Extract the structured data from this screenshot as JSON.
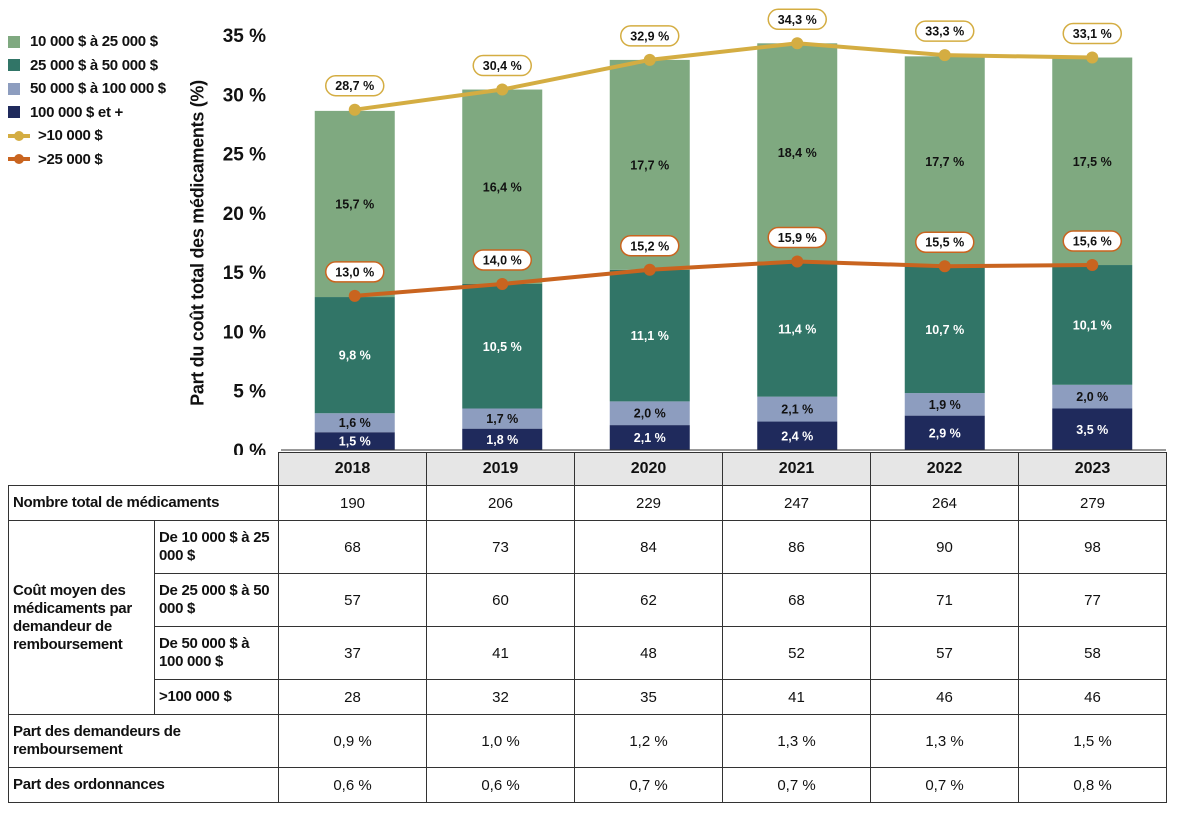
{
  "chart_data": {
    "type": "bar",
    "stacked": true,
    "categories": [
      "2018",
      "2019",
      "2020",
      "2021",
      "2022",
      "2023"
    ],
    "ylabel": "Part du coût total des médicaments (%)",
    "ylim": [
      0,
      35
    ],
    "yticks": [
      "0 %",
      "5 %",
      "10 %",
      "15 %",
      "20 %",
      "25 %",
      "30 %",
      "35 %"
    ],
    "series": [
      {
        "name": "100 000 $ et +",
        "color": "#1f2a5c",
        "label_color": "#ffffff",
        "values": [
          1.5,
          1.8,
          2.1,
          2.4,
          2.9,
          3.5
        ],
        "labels": [
          "1,5 %",
          "1,8 %",
          "2,1 %",
          "2,4 %",
          "2,9 %",
          "3,5 %"
        ]
      },
      {
        "name": "50 000 $ à 100 000 $",
        "color": "#8d9dbf",
        "label_color": "#111111",
        "values": [
          1.6,
          1.7,
          2.0,
          2.1,
          1.9,
          2.0
        ],
        "labels": [
          "1,6 %",
          "1,7 %",
          "2,0 %",
          "2,1 %",
          "1,9 %",
          "2,0 %"
        ]
      },
      {
        "name": "25 000 $ à 50 000 $",
        "color": "#317567",
        "label_color": "#ffffff",
        "values": [
          9.8,
          10.5,
          11.1,
          11.4,
          10.7,
          10.1
        ],
        "labels": [
          "9,8 %",
          "10,5 %",
          "11,1 %",
          "11,4 %",
          "10,7 %",
          "10,1 %"
        ]
      },
      {
        "name": "10 000 $ à 25 000 $",
        "color": "#7fa980",
        "label_color": "#111111",
        "values": [
          15.7,
          16.4,
          17.7,
          18.4,
          17.7,
          17.5
        ],
        "labels": [
          "15,7 %",
          "16,4 %",
          "17,7 %",
          "18,4 %",
          "17,7 %",
          "17,5 %"
        ]
      }
    ],
    "lines": [
      {
        "name": ">10 000 $",
        "color": "#d4ad42",
        "values": [
          28.7,
          30.4,
          32.9,
          34.3,
          33.3,
          33.1
        ],
        "labels": [
          "28,7 %",
          "30,4 %",
          "32,9 %",
          "34,3 %",
          "33,3 %",
          "33,1 %"
        ]
      },
      {
        "name": ">25 000 $",
        "color": "#c9641f",
        "values": [
          13.0,
          14.0,
          15.2,
          15.9,
          15.5,
          15.6
        ],
        "labels": [
          "13,0 %",
          "14,0 %",
          "15,2 %",
          "15,9 %",
          "15,5 %",
          "15,6 %"
        ]
      }
    ],
    "legend": {
      "position": "top-left",
      "items": [
        "10 000 $ à 25 000 $",
        "25 000 $ à 50 000 $",
        "50 000 $ à 100 000 $",
        "100 000 $ et +",
        ">10 000 $",
        ">25 000 $"
      ]
    }
  },
  "table": {
    "years": [
      "2018",
      "2019",
      "2020",
      "2021",
      "2022",
      "2023"
    ],
    "total_label": "Nombre total de médicaments",
    "total_values": [
      "190",
      "206",
      "229",
      "247",
      "264",
      "279"
    ],
    "cost_group_label": "Coût moyen des médicaments par demandeur de remboursement",
    "cost_rows": [
      {
        "label": "De 10 000 $ à 25 000 $",
        "values": [
          "68",
          "73",
          "84",
          "86",
          "90",
          "98"
        ]
      },
      {
        "label": "De 25 000 $ à 50 000 $",
        "values": [
          "57",
          "60",
          "62",
          "68",
          "71",
          "77"
        ]
      },
      {
        "label": "De 50 000 $ à 100 000 $",
        "values": [
          "37",
          "41",
          "48",
          "52",
          "57",
          "58"
        ]
      },
      {
        "label": ">100 000 $",
        "values": [
          "28",
          "32",
          "35",
          "41",
          "46",
          "46"
        ]
      }
    ],
    "claimants_label": "Part des demandeurs de remboursement",
    "claimants_values": [
      "0,9 %",
      "1,0 %",
      "1,2 %",
      "1,3 %",
      "1,3 %",
      "1,5 %"
    ],
    "prescriptions_label": "Part des ordonnances",
    "prescriptions_values": [
      "0,6 %",
      "0,6 %",
      "0,7 %",
      "0,7 %",
      "0,7 %",
      "0,8 %"
    ]
  }
}
